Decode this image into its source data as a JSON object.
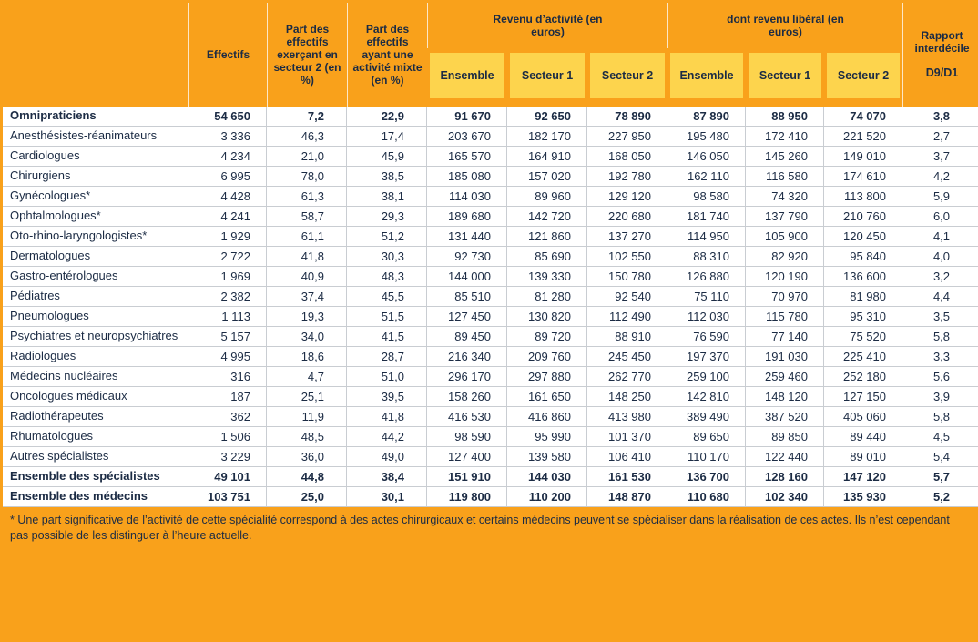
{
  "colors": {
    "orange": "#F9A11B",
    "yellow": "#FDD44D",
    "navy": "#1B2B44",
    "grid": "#C9CDD2"
  },
  "table": {
    "headers": {
      "effectifs": "Effectifs",
      "part_secteur2": "Part des effectifs exerçant en secteur 2 (en %)",
      "part_mixte": "Part des effectifs ayant une activité mixte (en %)",
      "revenu_activite": "Revenu d’activité (en euros)",
      "dont_revenu_liberal": "dont revenu libéral (en euros)",
      "sub": [
        "Ensemble",
        "Secteur 1",
        "Secteur 2"
      ],
      "rapport": "Rapport interdécile",
      "rapport_sub": "D9/D1"
    },
    "rows": [
      {
        "label": "Omnipraticiens",
        "bold": true,
        "values": [
          "54 650",
          "7,2",
          "22,9",
          "91 670",
          "92 650",
          "78 890",
          "87 890",
          "88 950",
          "74 070",
          "3,8"
        ]
      },
      {
        "label": "Anesthésistes-réanimateurs",
        "bold": false,
        "values": [
          "3 336",
          "46,3",
          "17,4",
          "203 670",
          "182 170",
          "227 950",
          "195 480",
          "172 410",
          "221 520",
          "2,7"
        ]
      },
      {
        "label": "Cardiologues",
        "bold": false,
        "values": [
          "4 234",
          "21,0",
          "45,9",
          "165 570",
          "164 910",
          "168 050",
          "146 050",
          "145 260",
          "149 010",
          "3,7"
        ]
      },
      {
        "label": "Chirurgiens",
        "bold": false,
        "values": [
          "6 995",
          "78,0",
          "38,5",
          "185 080",
          "157 020",
          "192 780",
          "162 110",
          "116 580",
          "174 610",
          "4,2"
        ]
      },
      {
        "label": "Gynécologues*",
        "bold": false,
        "values": [
          "4 428",
          "61,3",
          "38,1",
          "114 030",
          "89 960",
          "129 120",
          "98 580",
          "74 320",
          "113 800",
          "5,9"
        ]
      },
      {
        "label": "Ophtalmologues*",
        "bold": false,
        "values": [
          "4 241",
          "58,7",
          "29,3",
          "189 680",
          "142 720",
          "220 680",
          "181 740",
          "137 790",
          "210 760",
          "6,0"
        ]
      },
      {
        "label": "Oto-rhino-laryngologistes*",
        "bold": false,
        "values": [
          "1 929",
          "61,1",
          "51,2",
          "131 440",
          "121 860",
          "137 270",
          "114 950",
          "105 900",
          "120 450",
          "4,1"
        ]
      },
      {
        "label": "Dermatologues",
        "bold": false,
        "values": [
          "2 722",
          "41,8",
          "30,3",
          "92 730",
          "85 690",
          "102 550",
          "88 310",
          "82 920",
          "95 840",
          "4,0"
        ]
      },
      {
        "label": "Gastro-entérologues",
        "bold": false,
        "values": [
          "1 969",
          "40,9",
          "48,3",
          "144 000",
          "139 330",
          "150 780",
          "126 880",
          "120 190",
          "136 600",
          "3,2"
        ]
      },
      {
        "label": "Pédiatres",
        "bold": false,
        "values": [
          "2 382",
          "37,4",
          "45,5",
          "85 510",
          "81 280",
          "92 540",
          "75 110",
          "70 970",
          "81 980",
          "4,4"
        ]
      },
      {
        "label": "Pneumologues",
        "bold": false,
        "values": [
          "1 113",
          "19,3",
          "51,5",
          "127 450",
          "130 820",
          "112 490",
          "112 030",
          "115 780",
          "95 310",
          "3,5"
        ]
      },
      {
        "label": "Psychiatres et neuropsychiatres",
        "bold": false,
        "values": [
          "5 157",
          "34,0",
          "41,5",
          "89 450",
          "89 720",
          "88 910",
          "76 590",
          "77 140",
          "75 520",
          "5,8"
        ]
      },
      {
        "label": "Radiologues",
        "bold": false,
        "values": [
          "4 995",
          "18,6",
          "28,7",
          "216 340",
          "209 760",
          "245 450",
          "197 370",
          "191 030",
          "225 410",
          "3,3"
        ]
      },
      {
        "label": "Médecins nucléaires",
        "bold": false,
        "values": [
          "316",
          "4,7",
          "51,0",
          "296 170",
          "297 880",
          "262 770",
          "259 100",
          "259 460",
          "252 180",
          "5,6"
        ]
      },
      {
        "label": "Oncologues médicaux",
        "bold": false,
        "values": [
          "187",
          "25,1",
          "39,5",
          "158 260",
          "161 650",
          "148 250",
          "142 810",
          "148 120",
          "127 150",
          "3,9"
        ]
      },
      {
        "label": "Radiothérapeutes",
        "bold": false,
        "values": [
          "362",
          "11,9",
          "41,8",
          "416 530",
          "416 860",
          "413 980",
          "389 490",
          "387 520",
          "405 060",
          "5,8"
        ]
      },
      {
        "label": "Rhumatologues",
        "bold": false,
        "values": [
          "1 506",
          "48,5",
          "44,2",
          "98 590",
          "95 990",
          "101 370",
          "89 650",
          "89 850",
          "89 440",
          "4,5"
        ]
      },
      {
        "label": "Autres spécialistes",
        "bold": false,
        "values": [
          "3 229",
          "36,0",
          "49,0",
          "127 400",
          "139 580",
          "106 410",
          "110 170",
          "122 440",
          "89 010",
          "5,4"
        ]
      },
      {
        "label": "Ensemble des spécialistes",
        "bold": true,
        "values": [
          "49 101",
          "44,8",
          "38,4",
          "151 910",
          "144 030",
          "161 530",
          "136 700",
          "128 160",
          "147 120",
          "5,7"
        ]
      },
      {
        "label": "Ensemble des médecins",
        "bold": true,
        "values": [
          "103 751",
          "25,0",
          "30,1",
          "119 800",
          "110 200",
          "148 870",
          "110 680",
          "102 340",
          "135 930",
          "5,2"
        ]
      }
    ]
  },
  "footnote": "* Une part significative de l’activité de cette spécialité correspond à des actes chirurgicaux et certains médecins peuvent se spécialiser dans la réalisation de ces actes. Ils n’est cependant pas possible de les distinguer à l’heure actuelle."
}
